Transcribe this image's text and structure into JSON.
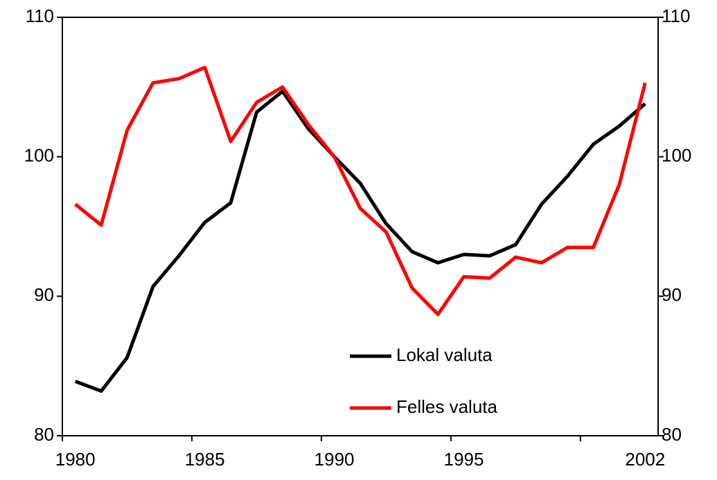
{
  "chart_data": {
    "type": "line",
    "categories": [
      "1980",
      null,
      null,
      null,
      null,
      "1985",
      null,
      null,
      null,
      null,
      "1990",
      null,
      null,
      null,
      null,
      "1995",
      null,
      null,
      null,
      null,
      null,
      null,
      "2002"
    ],
    "series": [
      {
        "name": "Lokal valuta",
        "color": "#000000",
        "values": [
          83.9,
          83.2,
          85.6,
          90.7,
          92.9,
          95.3,
          96.7,
          103.2,
          104.7,
          102.0,
          100.0,
          98.1,
          95.2,
          93.2,
          92.4,
          93.0,
          92.9,
          93.7,
          96.6,
          98.6,
          100.9,
          102.2,
          103.8
        ]
      },
      {
        "name": "Felles valuta",
        "color": "#ff0000",
        "values": [
          96.6,
          95.1,
          101.9,
          105.3,
          105.6,
          106.4,
          101.1,
          103.9,
          105.0,
          102.3,
          100.0,
          96.3,
          94.6,
          90.6,
          88.7,
          91.4,
          91.3,
          92.8,
          92.4,
          93.5,
          93.5,
          98.0,
          105.3
        ]
      }
    ],
    "ylim": [
      80,
      110
    ],
    "yticks": [
      80,
      90,
      100,
      110
    ],
    "y2lim": [
      80,
      110
    ],
    "y2ticks": [
      80,
      90,
      100,
      110
    ]
  }
}
